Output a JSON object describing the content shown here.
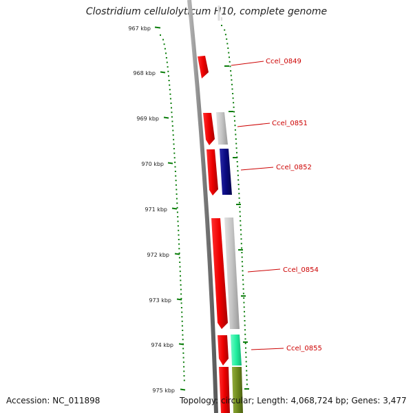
{
  "title": "Clostridium cellulolyticum H10, complete genome",
  "ticks": [
    {
      "label": "967 kbp"
    },
    {
      "label": "968 kbp"
    },
    {
      "label": "969 kbp"
    },
    {
      "label": "970 kbp"
    },
    {
      "label": "971 kbp"
    },
    {
      "label": "972 kbp"
    },
    {
      "label": "973 kbp"
    },
    {
      "label": "974 kbp"
    },
    {
      "label": "975 kbp"
    }
  ],
  "gene_labels": [
    "Ccel_0849",
    "Ccel_0851",
    "Ccel_0852",
    "Ccel_0854",
    "Ccel_0855"
  ],
  "colors": {
    "tick": "#0a7d0a",
    "backbone": "#8c8c8c",
    "gene_label": "#cc0000",
    "cds_red": "#ee0000",
    "cds_gray": "#c4c4c4",
    "cds_navy": "#0a0a80",
    "cds_mint": "#22f0a0",
    "cds_olive": "#6e8a1e"
  },
  "footer": {
    "accession": "Accession: NC_011898",
    "summary": "Topology: circular; Length: 4,068,724 bp; Genes: 3,477"
  }
}
